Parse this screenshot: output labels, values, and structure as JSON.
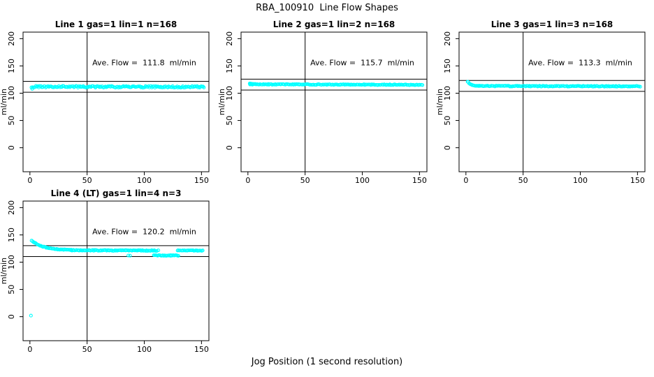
{
  "figure": {
    "title": "RBA_100910  Line Flow Shapes",
    "xlabel": "Jog Position (1 second resolution)"
  },
  "chart_data": {
    "type": "scatter",
    "title": "RBA_100910  Line Flow Shapes",
    "xlabel": "Jog Position (1 second resolution)",
    "ylabel": "ml/min",
    "marker": "open-circle",
    "grid": false,
    "legend": "none",
    "colors": {
      "points": "#00ffff",
      "axes": "#000000",
      "background": "#ffffff"
    },
    "xlim": [
      -6,
      156.5
    ],
    "ylim": [
      -44,
      212
    ],
    "xticks": [
      0,
      50,
      100,
      150
    ],
    "yticks": [
      0,
      50,
      100,
      150,
      200
    ],
    "annotation_xy": [
      100,
      151
    ],
    "panels": [
      {
        "title": "Line 1 gas=1 lin=1 n=168",
        "annotation": "Ave. Flow =  111.8  ml/min",
        "ave_flow_ml_min": 111.8,
        "vline_x": 50,
        "hlines_y": [
          121.8,
          101.8
        ],
        "segments": [
          {
            "type": "linear",
            "x0": 1.5,
            "x1": 152.3,
            "n": 172,
            "y0": 111.9,
            "y1": 111.5,
            "jitter": 1.5
          }
        ],
        "outliers": [
          [
            2,
            108
          ]
        ]
      },
      {
        "title": "Line 2 gas=1 lin=2 n=168",
        "annotation": "Ave. Flow =  115.7  ml/min",
        "ave_flow_ml_min": 115.7,
        "vline_x": 50,
        "hlines_y": [
          125.7,
          105.7
        ],
        "segments": [
          {
            "type": "linear",
            "x0": 1.5,
            "x1": 4,
            "n": 8,
            "y0": 117.4,
            "y1": 116.8,
            "jitter": 0.8
          },
          {
            "type": "linear",
            "x0": 2,
            "x1": 152.3,
            "n": 172,
            "y0": 116.4,
            "y1": 115.3,
            "jitter": 0.75
          }
        ],
        "outliers": []
      },
      {
        "title": "Line 3 gas=1 lin=3 n=168",
        "annotation": "Ave. Flow =  113.3  ml/min",
        "ave_flow_ml_min": 113.3,
        "vline_x": 50,
        "hlines_y": [
          123.3,
          103.3
        ],
        "segments": [
          {
            "type": "exp",
            "x0": 1.8,
            "x1": 12,
            "n": 14,
            "asym": 112.8,
            "amp": 7.5,
            "tau": 3,
            "jitter": 0.4
          },
          {
            "type": "linear",
            "x0": 9,
            "x1": 152.3,
            "n": 166,
            "y0": 113.2,
            "y1": 112.6,
            "jitter": 0.8
          }
        ],
        "outliers": [
          [
            2,
            120.3
          ]
        ]
      },
      {
        "title": "Line 4 (LT) gas=1 lin=4 n=3",
        "annotation": "Ave. Flow =  120.2  ml/min",
        "ave_flow_ml_min": 120.2,
        "vline_x": 50,
        "hlines_y": [
          130.2,
          110.2
        ],
        "segments": [
          {
            "type": "exp",
            "x0": 1.5,
            "x1": 36,
            "n": 45,
            "asym": 121.8,
            "amp": 18,
            "tau": 10,
            "jitter": 0.6
          },
          {
            "type": "linear",
            "x0": 35,
            "x1": 112,
            "n": 95,
            "y0": 121.8,
            "y1": 121.2,
            "jitter": 0.8
          },
          {
            "type": "linear",
            "x0": 108,
            "x1": 130,
            "n": 28,
            "y0": 112.3,
            "y1": 112.2,
            "jitter": 0.7
          },
          {
            "type": "linear",
            "x0": 129,
            "x1": 151,
            "n": 27,
            "y0": 121.5,
            "y1": 121.3,
            "jitter": 0.6
          }
        ],
        "outliers": [
          [
            0.9,
            2
          ],
          [
            86,
            112.1
          ],
          [
            87.5,
            111.9
          ]
        ]
      }
    ]
  }
}
